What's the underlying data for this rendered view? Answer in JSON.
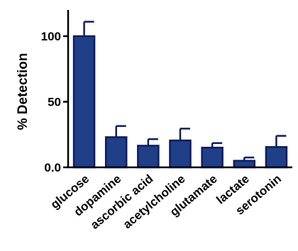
{
  "chart_data": {
    "type": "bar",
    "title": "",
    "xlabel": "",
    "ylabel": "% Detection",
    "ylim": [
      0,
      120
    ],
    "yticks": [
      0,
      50,
      100
    ],
    "ytick_labels": [
      "0.0",
      "50",
      "100"
    ],
    "grid": false,
    "categories": [
      "glucose",
      "dopamine",
      "ascorbic acid",
      "acetylcholine",
      "glutamate",
      "lactate",
      "serotonin"
    ],
    "values": [
      100,
      23,
      16.5,
      20.5,
      15,
      5,
      15.5
    ],
    "errors": [
      11,
      8.5,
      5,
      9,
      3.5,
      2.5,
      8.5
    ],
    "bar_fill": "#1f3f86",
    "bar_edge": "#0b1d66"
  }
}
